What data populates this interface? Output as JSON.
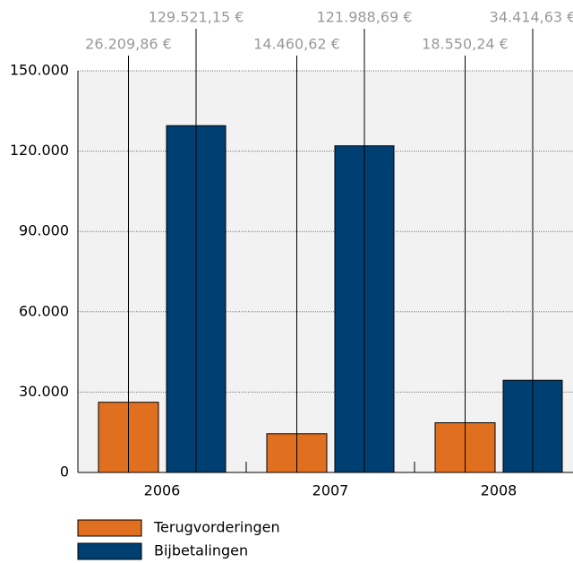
{
  "chart_data": {
    "type": "bar",
    "categories": [
      "2006",
      "2007",
      "2008"
    ],
    "series": [
      {
        "name": "Terugvorderingen",
        "color": "#e07020",
        "values": [
          26209.86,
          14460.62,
          18550.24
        ],
        "value_labels": [
          "26.209,86 €",
          "14.460,62 €",
          "18.550,24 €"
        ]
      },
      {
        "name": "Bijbetalingen",
        "color": "#003f72",
        "values": [
          129521.15,
          121988.69,
          34414.63
        ],
        "value_labels": [
          "129.521,15 €",
          "121.988,69 €",
          "34.414,63 €"
        ]
      }
    ],
    "ylim": [
      0,
      150000
    ],
    "yticks": [
      0,
      {
        "value": 30000,
        "label": "30.000"
      },
      {
        "value": 60000,
        "label": "60.000"
      },
      {
        "value": 90000,
        "label": "90.000"
      },
      {
        "value": 120000,
        "label": "120.000"
      },
      {
        "value": 150000,
        "label": "150.000"
      }
    ],
    "grid": true
  }
}
